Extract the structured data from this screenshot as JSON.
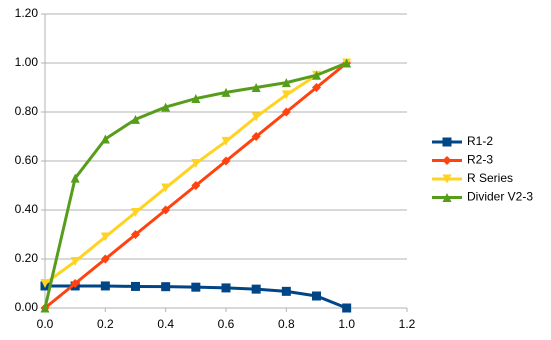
{
  "chart_data": {
    "type": "line",
    "x": [
      0,
      0.1,
      0.2,
      0.3,
      0.4,
      0.5,
      0.6,
      0.7,
      0.8,
      0.9,
      1
    ],
    "series": [
      {
        "name": "R1-2",
        "color": "#004586",
        "marker": "square",
        "values": [
          0.09,
          0.09,
          0.09,
          0.088,
          0.087,
          0.085,
          0.082,
          0.077,
          0.068,
          0.049,
          0
        ]
      },
      {
        "name": "R2-3",
        "color": "#ff420e",
        "marker": "diamond",
        "values": [
          0,
          0.1,
          0.2,
          0.3,
          0.4,
          0.5,
          0.6,
          0.7,
          0.8,
          0.9,
          1
        ]
      },
      {
        "name": "R Series",
        "color": "#ffd320",
        "marker": "triangle-down",
        "values": [
          0.1,
          0.19,
          0.29,
          0.39,
          0.49,
          0.59,
          0.68,
          0.78,
          0.87,
          0.95,
          1
        ]
      },
      {
        "name": "Divider V2-3",
        "color": "#579d1c",
        "marker": "triangle-up",
        "values": [
          0,
          0.53,
          0.69,
          0.77,
          0.82,
          0.855,
          0.88,
          0.9,
          0.92,
          0.95,
          1
        ]
      }
    ],
    "xlim": [
      0,
      1.2
    ],
    "xticks": [
      {
        "value": 0,
        "label": "0.0"
      },
      0.2,
      0.4,
      0.6,
      0.8,
      {
        "value": 1,
        "label": "1.0"
      },
      1.2
    ],
    "ylim": [
      0,
      1.2
    ],
    "yticks": [
      {
        "value": 0,
        "label": "0.00"
      },
      {
        "value": 0.2,
        "label": "0.20"
      },
      {
        "value": 0.4,
        "label": "0.40"
      },
      {
        "value": 0.6,
        "label": "0.60"
      },
      {
        "value": 0.8,
        "label": "0.80"
      },
      {
        "value": 1,
        "label": "1.00"
      },
      {
        "value": 1.2,
        "label": "1.20"
      }
    ],
    "grid": true,
    "legend": "right"
  }
}
